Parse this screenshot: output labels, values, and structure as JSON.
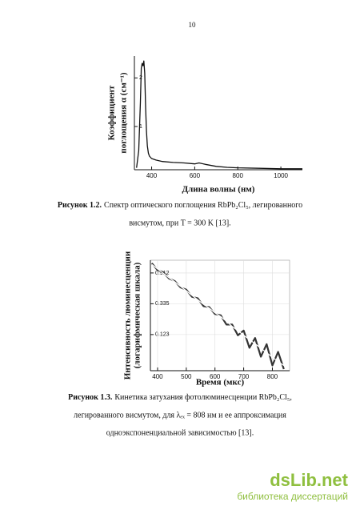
{
  "page_number": "10",
  "chart_data": [
    {
      "type": "line",
      "ylabel": [
        "Коэффициент",
        "поглощения α (см⁻¹)"
      ],
      "xlabel": "Длина волны (нм)",
      "x": [
        330,
        340,
        348,
        352,
        356,
        360,
        364,
        368,
        372,
        376,
        380,
        385,
        390,
        400,
        420,
        450,
        500,
        550,
        600,
        620,
        650,
        700,
        750,
        800,
        900,
        1000,
        1100
      ],
      "series": [
        {
          "color": "#111111",
          "values": [
            0.15,
            0.5,
            1.5,
            2.2,
            2.3,
            2.25,
            2.35,
            2.1,
            1.4,
            0.9,
            0.6,
            0.45,
            0.39,
            0.34,
            0.31,
            0.28,
            0.26,
            0.25,
            0.23,
            0.25,
            0.22,
            0.18,
            0.16,
            0.15,
            0.14,
            0.13,
            0.13
          ]
        }
      ],
      "xlim": [
        320,
        1100
      ],
      "xticks": [
        400,
        600,
        800,
        1000
      ],
      "ylim": [
        0.11,
        2.45
      ],
      "yticks": [
        1,
        2
      ],
      "grid": false,
      "log_y": false
    },
    {
      "type": "line",
      "ylabel": [
        "Интенсивность люминесценции",
        "(логарифмическая шкала)"
      ],
      "xlabel": "Время (мкс)",
      "x": [
        380,
        400,
        420,
        440,
        460,
        480,
        500,
        520,
        540,
        560,
        580,
        600,
        620,
        640,
        660,
        680,
        700,
        720,
        740,
        760,
        780,
        800,
        820,
        840
      ],
      "series": [
        {
          "color": "#333333",
          "values": [
            1.25,
            1.0,
            0.93,
            0.76,
            0.7,
            0.57,
            0.53,
            0.42,
            0.4,
            0.31,
            0.3,
            0.24,
            0.23,
            0.17,
            0.17,
            0.12,
            0.14,
            0.08,
            0.11,
            0.06,
            0.09,
            0.045,
            0.07,
            0.04
          ]
        },
        {
          "color": "#ffffff",
          "values": [
            1.2,
            1.04,
            0.9,
            0.78,
            0.68,
            0.59,
            0.51,
            0.44,
            0.38,
            0.33,
            0.29,
            0.25,
            0.22,
            0.19,
            0.16,
            0.14,
            0.12,
            0.105,
            0.091,
            0.079,
            0.068,
            0.059,
            0.051,
            0.045
          ]
        }
      ],
      "xlim": [
        375,
        860
      ],
      "xticks": [
        400,
        500,
        600,
        700,
        800
      ],
      "ylim": [
        0.038,
        1.38
      ],
      "yticks": [
        0.123,
        0.335,
        0.912
      ],
      "grid": true,
      "log_y": true
    }
  ],
  "captions": [
    {
      "label": "Рисунок 1.2.",
      "lines": [
        "Спектр оптического поглощения RbPb₂Cl₅, легированного",
        "висмутом, при T = 300 K [13]."
      ]
    },
    {
      "label": "Рисунок 1.3.",
      "lines": [
        "Кинетика затухания фотолюминесценции RbPb₂Cl₅,",
        "легированного висмутом, для λₑₓ = 808 нм и ее аппроксимация",
        "одноэкспоненциальной зависимостью [13]."
      ]
    }
  ],
  "watermark": {
    "logo": "dsLib.net",
    "tagline": "библиотека диссертаций"
  }
}
